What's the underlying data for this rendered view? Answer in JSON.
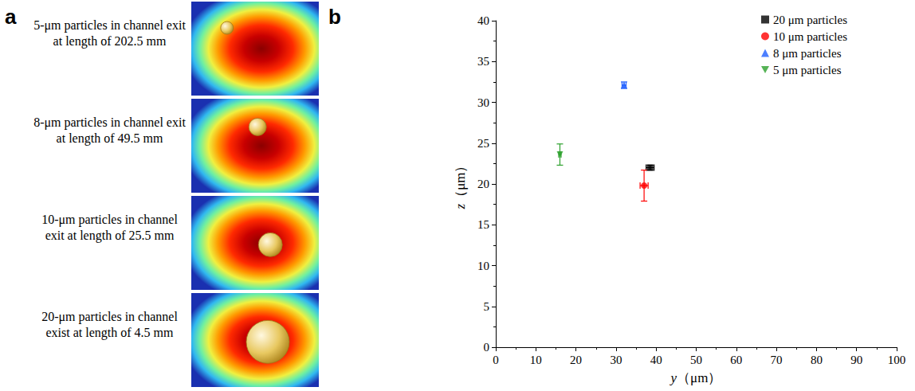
{
  "panel_a": {
    "panel_label": "a",
    "captions": [
      "5-μm particles in channel exit at length of 202.5 mm",
      "8-μm particles in channel exit at length of 49.5 mm",
      "10-μm particles in channel exit at length of 25.5 mm",
      "20-μm particles in channel exist at length of 4.5 mm"
    ]
  },
  "chart_data": {
    "type": "scatter",
    "panel_label": "b",
    "x_label": "y（μm）",
    "y_label": "z（μm）",
    "xlim": [
      0,
      100
    ],
    "xticks": [
      0,
      10,
      20,
      30,
      40,
      50,
      60,
      70,
      80,
      90,
      100
    ],
    "ylim": [
      0,
      40
    ],
    "yticks": [
      0,
      5,
      10,
      15,
      20,
      25,
      30,
      35,
      40
    ],
    "grid": false,
    "legend": "top-right",
    "series": [
      {
        "name": "20 μm particles",
        "color": "#000000",
        "marker": "square",
        "x": [
          38.5
        ],
        "values": [
          22.0
        ],
        "x_error": [
          1.0
        ],
        "y_error": [
          0.3
        ]
      },
      {
        "name": "10 μm particles",
        "color": "#ff0000",
        "marker": "circle",
        "x": [
          37.0
        ],
        "values": [
          19.8
        ],
        "x_error": [
          1.0
        ],
        "y_error": [
          1.9
        ]
      },
      {
        "name": "8 μm particles",
        "color": "#1f5fff",
        "marker": "triangle",
        "x": [
          32.0
        ],
        "values": [
          32.1
        ],
        "x_error": [
          0.5
        ],
        "y_error": [
          0.4
        ]
      },
      {
        "name": "5 μm particles",
        "color": "#2ca02c",
        "marker": "triangle-down",
        "x": [
          16.0
        ],
        "values": [
          23.6
        ],
        "x_error": [
          0.3
        ],
        "y_error": [
          1.3
        ]
      }
    ]
  }
}
